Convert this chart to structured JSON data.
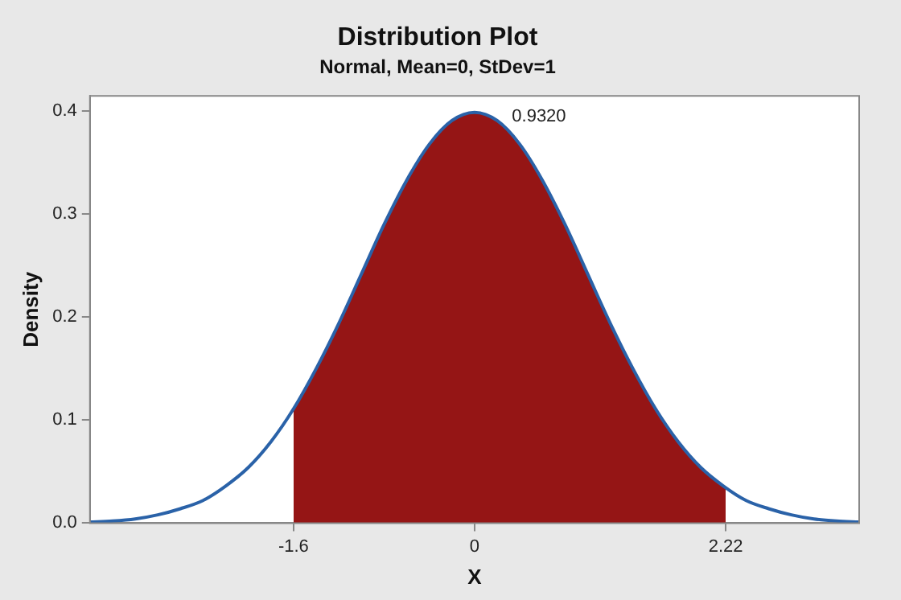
{
  "chart_data": {
    "type": "line",
    "title": "Distribution Plot",
    "subtitle": "Normal, Mean=0, StDev=1",
    "xlabel": "X",
    "ylabel": "Density",
    "xlim": [
      -3.4,
      3.4
    ],
    "xticks": [
      -1.6,
      0,
      2.22
    ],
    "ylim": [
      0,
      0.415
    ],
    "yticks": [
      {
        "value": 0,
        "label": "0.0"
      },
      0.1,
      0.2,
      0.3,
      0.4
    ],
    "grid": false,
    "legend": false,
    "marker": "none",
    "line_style": "solid",
    "annotations": [
      "0.9320"
    ],
    "series": [
      {
        "type": "area",
        "color": "#951515",
        "x": [
          -1.6,
          -1.4,
          -1.2,
          -1.0,
          -0.8,
          -0.6,
          -0.4,
          -0.2,
          0,
          0.2,
          0.4,
          0.6,
          0.8,
          1.0,
          1.2,
          1.4,
          1.6,
          1.8,
          2.0,
          2.2,
          2.22
        ],
        "values": [
          0.111,
          0.15,
          0.194,
          0.242,
          0.29,
          0.333,
          0.368,
          0.391,
          0.399,
          0.391,
          0.368,
          0.333,
          0.29,
          0.242,
          0.194,
          0.15,
          0.111,
          0.079,
          0.054,
          0.036,
          0.034
        ]
      },
      {
        "type": "line",
        "color": "#2a62a8",
        "x": [
          -3.4,
          -3.2,
          -3.0,
          -2.8,
          -2.6,
          -2.4,
          -2.2,
          -2.0,
          -1.8,
          -1.6,
          -1.4,
          -1.2,
          -1.0,
          -0.8,
          -0.6,
          -0.4,
          -0.2,
          0,
          0.2,
          0.4,
          0.6,
          0.8,
          1.0,
          1.2,
          1.4,
          1.6,
          1.8,
          2.0,
          2.2,
          2.4,
          2.6,
          2.8,
          3.0,
          3.2,
          3.4
        ],
        "values": [
          0.001,
          0.002,
          0.004,
          0.008,
          0.014,
          0.022,
          0.036,
          0.054,
          0.079,
          0.111,
          0.15,
          0.194,
          0.242,
          0.29,
          0.333,
          0.368,
          0.391,
          0.399,
          0.391,
          0.368,
          0.333,
          0.29,
          0.242,
          0.194,
          0.15,
          0.111,
          0.079,
          0.054,
          0.036,
          0.022,
          0.014,
          0.008,
          0.004,
          0.002,
          0.001
        ]
      }
    ]
  }
}
